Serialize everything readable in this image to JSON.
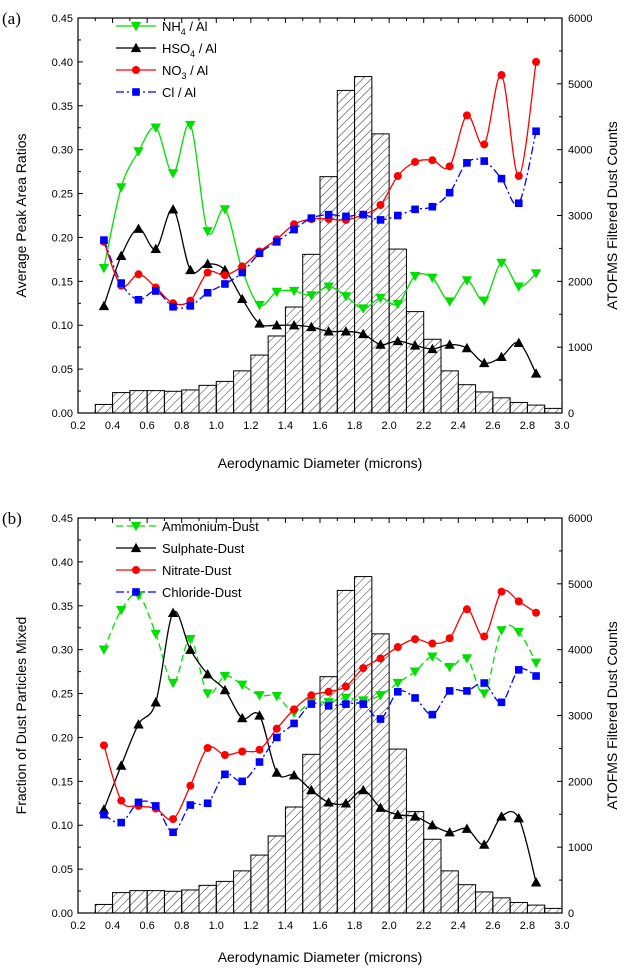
{
  "chart_data": [
    {
      "type": "line",
      "panel_label": "(a)",
      "xlabel": "Aerodynamic Diameter (microns)",
      "ylabel": "Average Peak Area Ratios",
      "y2label": "ATOFMS Filtered Dust Counts",
      "xlim": [
        0.2,
        3.0
      ],
      "ylim": [
        0,
        0.45
      ],
      "y2lim": [
        0,
        6000
      ],
      "xticks": [
        "0.2",
        "0.4",
        "0.6",
        "0.8",
        "1.0",
        "1.2",
        "1.4",
        "1.6",
        "1.8",
        "2.0",
        "2.2",
        "2.4",
        "2.6",
        "2.8",
        "3.0"
      ],
      "yticks": [
        "0.00",
        "0.05",
        "0.10",
        "0.15",
        "0.20",
        "0.25",
        "0.30",
        "0.35",
        "0.40",
        "0.45"
      ],
      "y2ticks": [
        "0",
        "1000",
        "2000",
        "3000",
        "4000",
        "5000",
        "6000"
      ],
      "legend_position": "top-left",
      "x": [
        0.35,
        0.45,
        0.55,
        0.65,
        0.75,
        0.85,
        0.95,
        1.05,
        1.15,
        1.25,
        1.35,
        1.45,
        1.55,
        1.65,
        1.75,
        1.85,
        1.95,
        2.05,
        2.15,
        2.25,
        2.35,
        2.45,
        2.55,
        2.65,
        2.75,
        2.85
      ],
      "series": [
        {
          "name": "NH4 / Al",
          "name_main": "NH",
          "name_sub": "4",
          "name_tail": " / Al",
          "color": "#00e000",
          "marker": "triangle-down",
          "dash": "solid",
          "values": [
            0.165,
            0.257,
            0.298,
            0.325,
            0.273,
            0.328,
            0.207,
            0.232,
            0.163,
            0.123,
            0.138,
            0.139,
            0.134,
            0.144,
            0.133,
            0.119,
            0.131,
            0.124,
            0.156,
            0.154,
            0.127,
            0.151,
            0.128,
            0.171,
            0.144,
            0.159
          ]
        },
        {
          "name": "HSO4 / Al",
          "name_main": "HSO",
          "name_sub": "4",
          "name_tail": " / Al",
          "color": "#000000",
          "marker": "triangle",
          "dash": "solid",
          "values": [
            0.122,
            0.179,
            0.21,
            0.187,
            0.232,
            0.163,
            0.17,
            0.163,
            0.13,
            0.102,
            0.1,
            0.1,
            0.098,
            0.093,
            0.093,
            0.09,
            0.078,
            0.082,
            0.077,
            0.073,
            0.078,
            0.074,
            0.057,
            0.064,
            0.08,
            0.045
          ]
        },
        {
          "name": "NO3 / Al",
          "name_main": "NO",
          "name_sub": "3",
          "name_tail": " / Al",
          "color": "#ff0000",
          "marker": "circle",
          "dash": "solid",
          "values": [
            0.195,
            0.145,
            0.158,
            0.143,
            0.125,
            0.128,
            0.16,
            0.157,
            0.167,
            0.184,
            0.198,
            0.215,
            0.221,
            0.221,
            0.22,
            0.226,
            0.237,
            0.27,
            0.286,
            0.288,
            0.281,
            0.339,
            0.306,
            0.385,
            0.27,
            0.4
          ]
        },
        {
          "name": "Cl / Al",
          "name_main": "Cl",
          "name_sub": "",
          "name_tail": " / Al",
          "color": "#0000ff",
          "marker": "square",
          "dash": "dashdot",
          "values": [
            0.197,
            0.148,
            0.129,
            0.139,
            0.121,
            0.122,
            0.137,
            0.147,
            0.16,
            0.182,
            0.195,
            0.209,
            0.222,
            0.226,
            0.224,
            0.226,
            0.22,
            0.225,
            0.232,
            0.235,
            0.251,
            0.285,
            0.287,
            0.267,
            0.239,
            0.321
          ]
        }
      ],
      "histogram": {
        "bin_edges": [
          0.3,
          0.4,
          0.5,
          0.6,
          0.7,
          0.8,
          0.9,
          1.0,
          1.1,
          1.2,
          1.3,
          1.4,
          1.5,
          1.6,
          1.7,
          1.8,
          1.9,
          2.0,
          2.1,
          2.2,
          2.3,
          2.4,
          2.5,
          2.6,
          2.7,
          2.8,
          2.9,
          3.0
        ],
        "counts": [
          130,
          310,
          340,
          340,
          330,
          350,
          420,
          480,
          640,
          880,
          1170,
          1610,
          2410,
          3590,
          4900,
          5110,
          4240,
          2490,
          1540,
          1120,
          640,
          430,
          320,
          230,
          160,
          120,
          70
        ]
      }
    },
    {
      "type": "line",
      "panel_label": "(b)",
      "xlabel": "Aerodynamic Diameter (microns)",
      "ylabel": "Fraction of Dust Particles Mixed",
      "y2label": "ATOFMS Filtered Dust Counts",
      "xlim": [
        0.2,
        3.0
      ],
      "ylim": [
        0,
        0.45
      ],
      "y2lim": [
        0,
        6000
      ],
      "xticks": [
        "0.2",
        "0.4",
        "0.6",
        "0.8",
        "1.0",
        "1.2",
        "1.4",
        "1.6",
        "1.8",
        "2.0",
        "2.2",
        "2.4",
        "2.6",
        "2.8",
        "3.0"
      ],
      "yticks": [
        "0.00",
        "0.05",
        "0.10",
        "0.15",
        "0.20",
        "0.25",
        "0.30",
        "0.35",
        "0.40",
        "0.45"
      ],
      "y2ticks": [
        "0",
        "1000",
        "2000",
        "3000",
        "4000",
        "5000",
        "6000"
      ],
      "legend_position": "top-left",
      "x": [
        0.35,
        0.45,
        0.55,
        0.65,
        0.75,
        0.85,
        0.95,
        1.05,
        1.15,
        1.25,
        1.35,
        1.45,
        1.55,
        1.65,
        1.75,
        1.85,
        1.95,
        2.05,
        2.15,
        2.25,
        2.35,
        2.45,
        2.55,
        2.65,
        2.75,
        2.85
      ],
      "series": [
        {
          "name": "Ammonium-Dust",
          "name_main": "Ammonium-Dust",
          "name_sub": "",
          "name_tail": "",
          "color": "#00e000",
          "marker": "triangle-down",
          "dash": "dashed",
          "values": [
            0.3,
            0.345,
            0.362,
            0.318,
            0.262,
            0.312,
            0.25,
            0.27,
            0.26,
            0.248,
            0.247,
            0.228,
            0.24,
            0.24,
            0.245,
            0.242,
            0.248,
            0.262,
            0.275,
            0.292,
            0.28,
            0.29,
            0.25,
            0.322,
            0.32,
            0.285
          ]
        },
        {
          "name": "Sulphate-Dust",
          "name_main": "Sulphate-Dust",
          "name_sub": "",
          "name_tail": "",
          "color": "#000000",
          "marker": "triangle",
          "dash": "solid",
          "values": [
            0.118,
            0.168,
            0.215,
            0.24,
            0.342,
            0.3,
            0.272,
            0.254,
            0.222,
            0.225,
            0.16,
            0.157,
            0.14,
            0.126,
            0.125,
            0.14,
            0.12,
            0.112,
            0.11,
            0.1,
            0.092,
            0.096,
            0.078,
            0.11,
            0.108,
            0.035
          ]
        },
        {
          "name": "Nitrate-Dust",
          "name_main": "Nitrate-Dust",
          "name_sub": "",
          "name_tail": "",
          "color": "#ff0000",
          "marker": "circle",
          "dash": "solid",
          "values": [
            0.191,
            0.128,
            0.122,
            0.119,
            0.107,
            0.145,
            0.188,
            0.18,
            0.184,
            0.186,
            0.21,
            0.232,
            0.248,
            0.252,
            0.258,
            0.279,
            0.29,
            0.303,
            0.312,
            0.307,
            0.313,
            0.346,
            0.315,
            0.366,
            0.355,
            0.342
          ]
        },
        {
          "name": "Chloride-Dust",
          "name_main": "Chloride-Dust",
          "name_sub": "",
          "name_tail": "",
          "color": "#0000ff",
          "marker": "square",
          "dash": "dashdot",
          "values": [
            0.112,
            0.103,
            0.126,
            0.122,
            0.092,
            0.123,
            0.125,
            0.158,
            0.15,
            0.172,
            0.2,
            0.216,
            0.238,
            0.236,
            0.238,
            0.238,
            0.221,
            0.252,
            0.245,
            0.226,
            0.253,
            0.253,
            0.262,
            0.24,
            0.277,
            0.27
          ]
        }
      ],
      "histogram": {
        "bin_edges": [
          0.3,
          0.4,
          0.5,
          0.6,
          0.7,
          0.8,
          0.9,
          1.0,
          1.1,
          1.2,
          1.3,
          1.4,
          1.5,
          1.6,
          1.7,
          1.8,
          1.9,
          2.0,
          2.1,
          2.2,
          2.3,
          2.4,
          2.5,
          2.6,
          2.7,
          2.8,
          2.9,
          3.0
        ],
        "counts": [
          130,
          310,
          340,
          340,
          330,
          350,
          420,
          480,
          640,
          880,
          1170,
          1610,
          2410,
          3590,
          4900,
          5110,
          4240,
          2490,
          1540,
          1120,
          640,
          430,
          320,
          230,
          160,
          120,
          70
        ]
      }
    }
  ]
}
